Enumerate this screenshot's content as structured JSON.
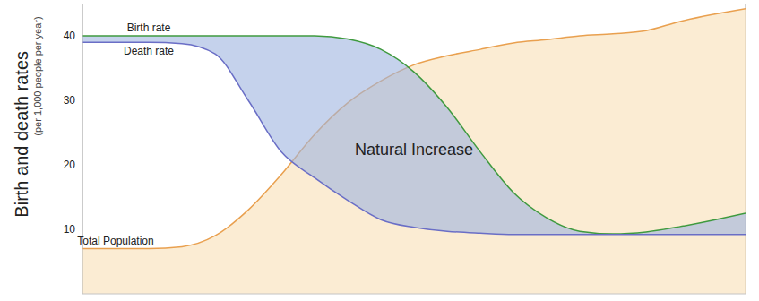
{
  "chart_data": {
    "type": "line",
    "ylabel": "Birth and death rates",
    "ylabel_sub": "(per 1,000 people per year)",
    "x": [
      0,
      5,
      10,
      15,
      20,
      25,
      30,
      35,
      40,
      45,
      50,
      55,
      60,
      65,
      70,
      75,
      80,
      85,
      90,
      95,
      100
    ],
    "xlim": [
      0,
      100
    ],
    "xticks": [
      20,
      40,
      60,
      80
    ],
    "ylim": [
      0,
      45
    ],
    "yticks": [
      10,
      20,
      30,
      40
    ],
    "grid": "x",
    "tick_labels": "y",
    "series": [
      {
        "name": "Birth rate",
        "color": "#3f9a3f",
        "values": [
          40,
          40,
          40,
          40,
          40,
          40,
          40,
          40,
          39.5,
          37.9,
          34.4,
          28.9,
          22,
          15.7,
          11.8,
          9.7,
          9.3,
          9.6,
          10.4,
          11.4,
          12.5
        ]
      },
      {
        "name": "Death rate",
        "color": "#6a6ec6",
        "values": [
          39,
          39,
          39,
          38.8,
          37.2,
          30,
          22,
          18,
          14.5,
          11.5,
          10.3,
          9.7,
          9.4,
          9.2,
          9.2,
          9.2,
          9.2,
          9.2,
          9.2,
          9.2,
          9.2
        ]
      },
      {
        "name": "Total Population",
        "color": "#e9a04f",
        "type": "area",
        "values": [
          7,
          7,
          7,
          7.3,
          9,
          13,
          18.5,
          24.7,
          29.6,
          33,
          35.5,
          36.9,
          37.9,
          38.9,
          39.4,
          40,
          40.3,
          40.8,
          42.2,
          43.3,
          44.2
        ]
      }
    ],
    "annotations": [
      {
        "text": "Natural Increase",
        "color": "#9fb4e0"
      }
    ]
  }
}
